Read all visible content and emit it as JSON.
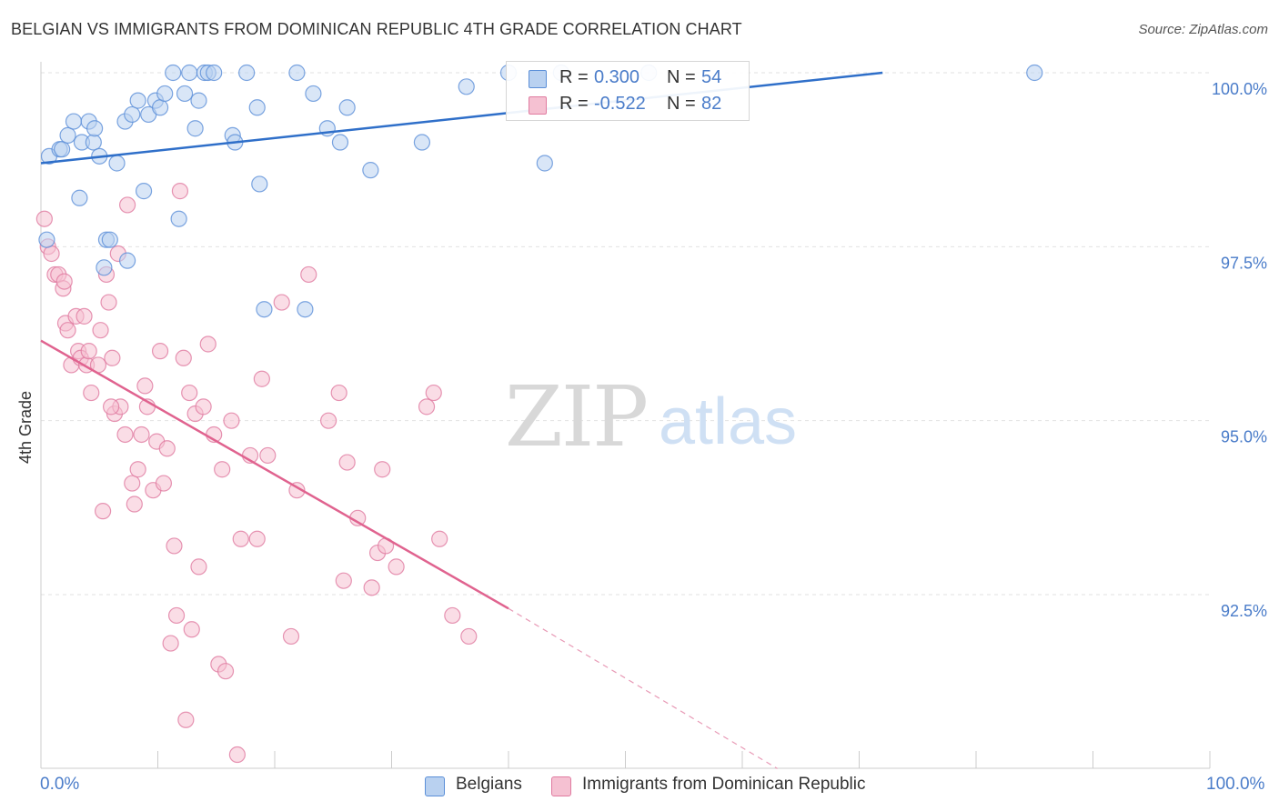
{
  "title": "BELGIAN VS IMMIGRANTS FROM DOMINICAN REPUBLIC 4TH GRADE CORRELATION CHART",
  "source": "Source: ZipAtlas.com",
  "watermark": {
    "zip": "ZIP",
    "atlas": "atlas"
  },
  "legend_top": {
    "rows": [
      {
        "r_label": "R =",
        "r_value": "0.300",
        "n_label": "N =",
        "n_value": "54"
      },
      {
        "r_label": "R =",
        "r_value": "-0.522",
        "n_label": "N =",
        "n_value": "82"
      }
    ]
  },
  "legend_bottom": {
    "series1": "Belgians",
    "series2": "Immigrants from Dominican Republic"
  },
  "x_axis": {
    "min_label": "0.0%",
    "max_label": "100.0%"
  },
  "colors": {
    "blue": "#5b8fd8",
    "blue_fill": "#b9d1f0",
    "pink": "#e07ba0",
    "pink_fill": "#f5c1d2",
    "axis_text": "#4a7cc9"
  },
  "chart_data": {
    "type": "scatter",
    "title": "BELGIAN VS IMMIGRANTS FROM DOMINICAN REPUBLIC 4TH GRADE CORRELATION CHART",
    "xlabel": "",
    "ylabel": "4th Grade",
    "xlim": [
      0,
      100
    ],
    "ylim": [
      90,
      100.45
    ],
    "y_ticks": [
      92.5,
      95.0,
      97.5,
      100.0
    ],
    "y_tick_labels": [
      "92.5%",
      "95.0%",
      "97.5%",
      "100.0%"
    ],
    "grid": "horizontal dashed",
    "series": [
      {
        "name": "Belgians",
        "color": "#5b8fd8",
        "fill": "#b9d1f0",
        "r": 0.3,
        "n": 54,
        "trend": {
          "x": [
            0,
            72
          ],
          "y": [
            98.7,
            100.0
          ],
          "dashed_extension": false
        },
        "points": [
          [
            0.5,
            97.6
          ],
          [
            0.7,
            98.8
          ],
          [
            1.6,
            98.9
          ],
          [
            1.8,
            98.9
          ],
          [
            2.3,
            99.1
          ],
          [
            2.8,
            99.3
          ],
          [
            3.3,
            98.2
          ],
          [
            3.5,
            99.0
          ],
          [
            4.1,
            99.3
          ],
          [
            4.5,
            99.0
          ],
          [
            4.6,
            99.2
          ],
          [
            5.0,
            98.8
          ],
          [
            5.4,
            97.2
          ],
          [
            5.6,
            97.6
          ],
          [
            5.9,
            97.6
          ],
          [
            6.5,
            98.7
          ],
          [
            7.2,
            99.3
          ],
          [
            7.4,
            97.3
          ],
          [
            7.8,
            99.4
          ],
          [
            8.3,
            99.6
          ],
          [
            8.8,
            98.3
          ],
          [
            9.2,
            99.4
          ],
          [
            9.8,
            99.6
          ],
          [
            10.2,
            99.5
          ],
          [
            10.6,
            99.7
          ],
          [
            11.3,
            100.0
          ],
          [
            11.8,
            97.9
          ],
          [
            12.3,
            99.7
          ],
          [
            12.7,
            100.0
          ],
          [
            13.2,
            99.2
          ],
          [
            13.5,
            99.6
          ],
          [
            14.0,
            100.0
          ],
          [
            14.3,
            100.0
          ],
          [
            14.8,
            100.0
          ],
          [
            16.4,
            99.1
          ],
          [
            16.6,
            99.0
          ],
          [
            17.6,
            100.0
          ],
          [
            18.5,
            99.5
          ],
          [
            19.1,
            96.6
          ],
          [
            18.7,
            98.4
          ],
          [
            21.9,
            100.0
          ],
          [
            22.6,
            96.6
          ],
          [
            23.3,
            99.7
          ],
          [
            24.5,
            99.2
          ],
          [
            25.6,
            99.0
          ],
          [
            26.2,
            99.5
          ],
          [
            28.2,
            98.6
          ],
          [
            32.6,
            99.0
          ],
          [
            36.4,
            99.8
          ],
          [
            40.0,
            100.0
          ],
          [
            43.1,
            98.7
          ],
          [
            44.5,
            100.0
          ],
          [
            52.0,
            100.0
          ],
          [
            85.0,
            100.0
          ]
        ]
      },
      {
        "name": "Immigrants from Dominican Republic",
        "color": "#e07ba0",
        "fill": "#f5c1d2",
        "r": -0.522,
        "n": 82,
        "trend": {
          "x": [
            0,
            40
          ],
          "y": [
            96.15,
            92.3
          ],
          "dashed_to": [
            63,
            90.0
          ]
        },
        "points": [
          [
            0.3,
            97.9
          ],
          [
            0.6,
            97.5
          ],
          [
            0.9,
            97.4
          ],
          [
            1.2,
            97.1
          ],
          [
            1.5,
            97.1
          ],
          [
            1.9,
            96.9
          ],
          [
            2.1,
            96.4
          ],
          [
            2.3,
            96.3
          ],
          [
            2.6,
            95.8
          ],
          [
            3.0,
            96.5
          ],
          [
            3.2,
            96.0
          ],
          [
            3.4,
            95.9
          ],
          [
            3.7,
            96.5
          ],
          [
            3.9,
            95.8
          ],
          [
            4.1,
            96.0
          ],
          [
            4.3,
            95.4
          ],
          [
            4.9,
            95.8
          ],
          [
            5.1,
            96.3
          ],
          [
            5.3,
            93.7
          ],
          [
            5.6,
            97.1
          ],
          [
            5.8,
            96.7
          ],
          [
            6.1,
            95.9
          ],
          [
            6.3,
            95.1
          ],
          [
            6.6,
            97.4
          ],
          [
            6.8,
            95.2
          ],
          [
            7.2,
            94.8
          ],
          [
            7.4,
            98.1
          ],
          [
            7.8,
            94.1
          ],
          [
            8.0,
            93.8
          ],
          [
            8.3,
            94.3
          ],
          [
            8.6,
            94.8
          ],
          [
            8.9,
            95.5
          ],
          [
            9.1,
            95.2
          ],
          [
            9.6,
            94.0
          ],
          [
            9.9,
            94.7
          ],
          [
            10.2,
            96.0
          ],
          [
            10.5,
            94.1
          ],
          [
            10.8,
            94.6
          ],
          [
            11.1,
            91.8
          ],
          [
            11.4,
            93.2
          ],
          [
            11.6,
            92.2
          ],
          [
            11.9,
            98.3
          ],
          [
            12.2,
            95.9
          ],
          [
            12.4,
            90.7
          ],
          [
            12.7,
            95.4
          ],
          [
            12.9,
            92.0
          ],
          [
            13.2,
            95.1
          ],
          [
            13.5,
            92.9
          ],
          [
            13.9,
            95.2
          ],
          [
            14.3,
            96.1
          ],
          [
            14.8,
            94.8
          ],
          [
            15.2,
            91.5
          ],
          [
            15.5,
            94.3
          ],
          [
            15.8,
            91.4
          ],
          [
            16.3,
            95.0
          ],
          [
            16.8,
            90.2
          ],
          [
            17.1,
            93.3
          ],
          [
            17.9,
            94.5
          ],
          [
            18.5,
            93.3
          ],
          [
            18.9,
            95.6
          ],
          [
            19.4,
            94.5
          ],
          [
            20.6,
            96.7
          ],
          [
            21.4,
            91.9
          ],
          [
            21.9,
            94.0
          ],
          [
            22.9,
            97.1
          ],
          [
            24.6,
            95.0
          ],
          [
            25.5,
            95.4
          ],
          [
            25.9,
            92.7
          ],
          [
            26.2,
            94.4
          ],
          [
            27.1,
            93.6
          ],
          [
            28.3,
            92.6
          ],
          [
            28.8,
            93.1
          ],
          [
            29.2,
            94.3
          ],
          [
            29.5,
            93.2
          ],
          [
            30.4,
            92.9
          ],
          [
            33.0,
            95.2
          ],
          [
            33.6,
            95.4
          ],
          [
            34.1,
            93.3
          ],
          [
            35.2,
            92.2
          ],
          [
            36.6,
            91.9
          ],
          [
            2.0,
            97.0
          ],
          [
            6.0,
            95.2
          ]
        ]
      }
    ]
  }
}
